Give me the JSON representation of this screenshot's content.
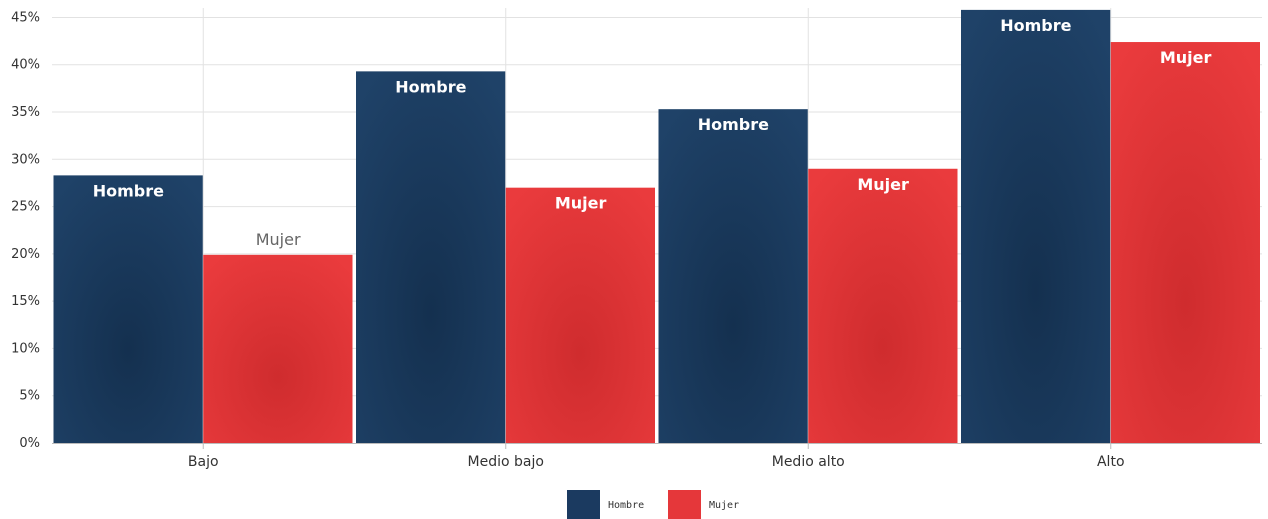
{
  "colors": {
    "hombre": "#1b3a60",
    "mujer": "#e5373a",
    "grid": "#e2e2e2",
    "axis": "#bbbbbb"
  },
  "chart_data": {
    "type": "bar",
    "categories": [
      "Bajo",
      "Medio bajo",
      "Medio alto",
      "Alto"
    ],
    "series": [
      {
        "name": "Hombre",
        "values": [
          28.3,
          39.3,
          35.3,
          45.8
        ],
        "labels": [
          "Hombre",
          "Hombre",
          "Hombre",
          "Hombre"
        ]
      },
      {
        "name": "Mujer",
        "values": [
          19.9,
          27.0,
          29.0,
          42.4
        ],
        "labels": [
          "Mujer",
          "Mujer",
          "Mujer",
          "Mujer"
        ]
      }
    ],
    "ylim": [
      0,
      46
    ],
    "yticks": [
      {
        "value": 0,
        "label": "0%"
      },
      {
        "value": 5,
        "label": "5%"
      },
      {
        "value": 10,
        "label": "10%"
      },
      {
        "value": 15,
        "label": "15%"
      },
      {
        "value": 20,
        "label": "20%"
      },
      {
        "value": 25,
        "label": "25%"
      },
      {
        "value": 30,
        "label": "30%"
      },
      {
        "value": 35,
        "label": "35%"
      },
      {
        "value": 40,
        "label": "40%"
      },
      {
        "value": 45,
        "label": "45%"
      }
    ],
    "grid": true,
    "legend_position": "bottom-center",
    "title": "",
    "xlabel": "",
    "ylabel": ""
  }
}
